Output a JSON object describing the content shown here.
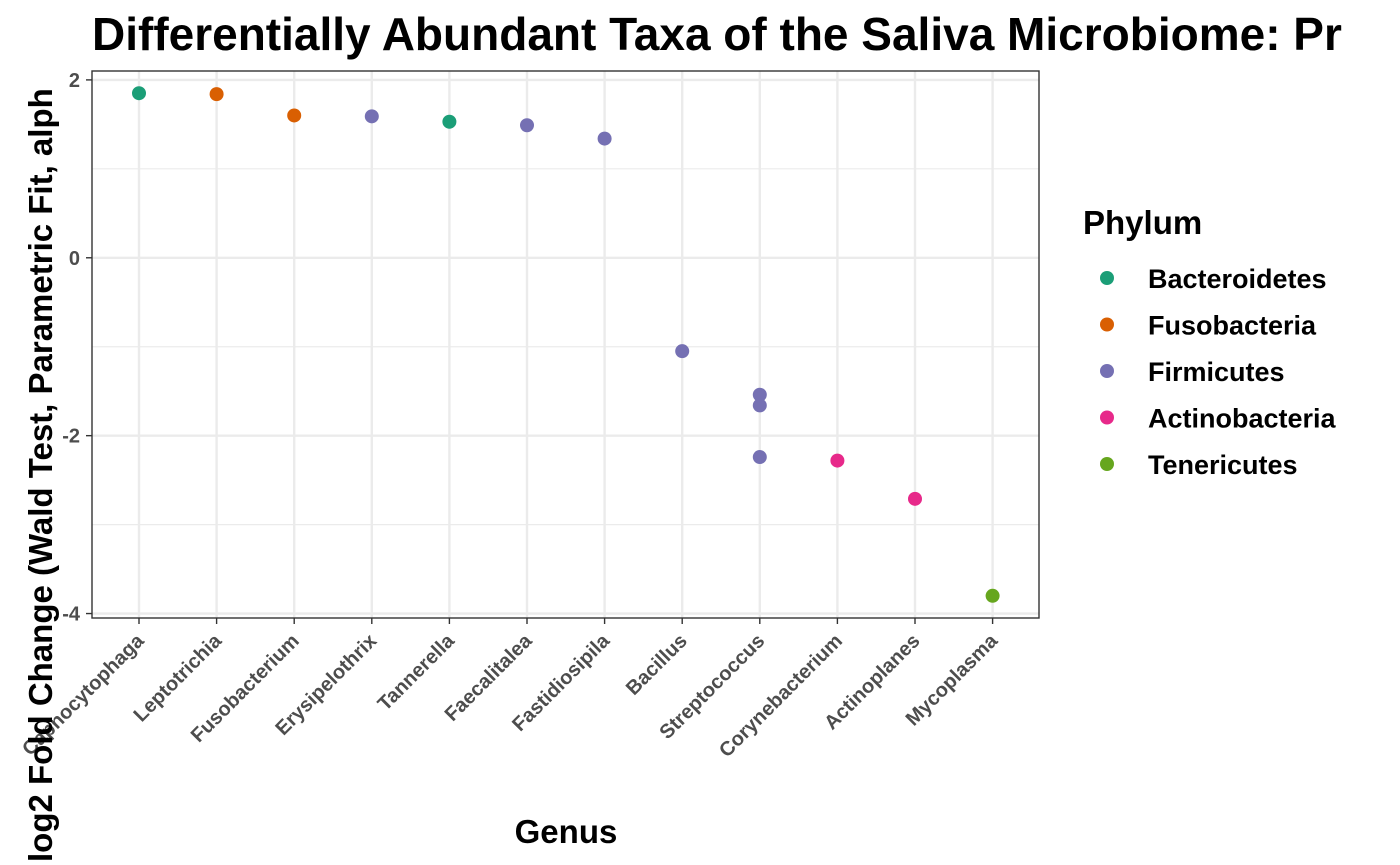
{
  "chart_data": {
    "type": "scatter",
    "title": "Differentially Abundant Taxa of the Saliva Microbiome: Pr",
    "xlabel": "Genus",
    "ylabel": "log2 Fold Change (Wald Test, Parametric Fit, alph",
    "categories": [
      "Capnocytophaga",
      "Leptotrichia",
      "Fusobacterium",
      "Erysipelothrix",
      "Tannerella",
      "Faecalitalea",
      "Fastidiosipila",
      "Bacillus",
      "Streptococcus",
      "Corynebacterium",
      "Actinoplanes",
      "Mycoplasma"
    ],
    "ylim": [
      -4.05,
      2.1
    ],
    "yticks": [
      {
        "value": 2,
        "label": "2"
      },
      {
        "value": 0,
        "label": "0"
      },
      {
        "value": -2,
        "label": "-2"
      },
      {
        "value": -4,
        "label": "-4"
      }
    ],
    "yminor": [
      1,
      -1,
      -3
    ],
    "grid": true,
    "legend": {
      "title": "Phylum",
      "placement": "right",
      "items": [
        {
          "name": "Bacteroidetes",
          "color": "#1b9e77"
        },
        {
          "name": "Fusobacteria",
          "color": "#d95f02"
        },
        {
          "name": "Firmicutes",
          "color": "#7570b3"
        },
        {
          "name": "Actinobacteria",
          "color": "#e7298a"
        },
        {
          "name": "Tenericutes",
          "color": "#66a61e"
        }
      ]
    },
    "points": [
      {
        "genus": "Capnocytophaga",
        "phylum": "Bacteroidetes",
        "y": 1.85
      },
      {
        "genus": "Leptotrichia",
        "phylum": "Fusobacteria",
        "y": 1.84
      },
      {
        "genus": "Fusobacterium",
        "phylum": "Fusobacteria",
        "y": 1.6
      },
      {
        "genus": "Erysipelothrix",
        "phylum": "Firmicutes",
        "y": 1.59
      },
      {
        "genus": "Tannerella",
        "phylum": "Bacteroidetes",
        "y": 1.53
      },
      {
        "genus": "Faecalitalea",
        "phylum": "Firmicutes",
        "y": 1.49
      },
      {
        "genus": "Fastidiosipila",
        "phylum": "Firmicutes",
        "y": 1.34
      },
      {
        "genus": "Bacillus",
        "phylum": "Firmicutes",
        "y": -1.05
      },
      {
        "genus": "Streptococcus",
        "phylum": "Firmicutes",
        "y": -1.54
      },
      {
        "genus": "Streptococcus",
        "phylum": "Firmicutes",
        "y": -1.66
      },
      {
        "genus": "Streptococcus",
        "phylum": "Firmicutes",
        "y": -2.24
      },
      {
        "genus": "Corynebacterium",
        "phylum": "Actinobacteria",
        "y": -2.28
      },
      {
        "genus": "Actinoplanes",
        "phylum": "Actinobacteria",
        "y": -2.71
      },
      {
        "genus": "Mycoplasma",
        "phylum": "Tenericutes",
        "y": -3.8
      }
    ]
  }
}
